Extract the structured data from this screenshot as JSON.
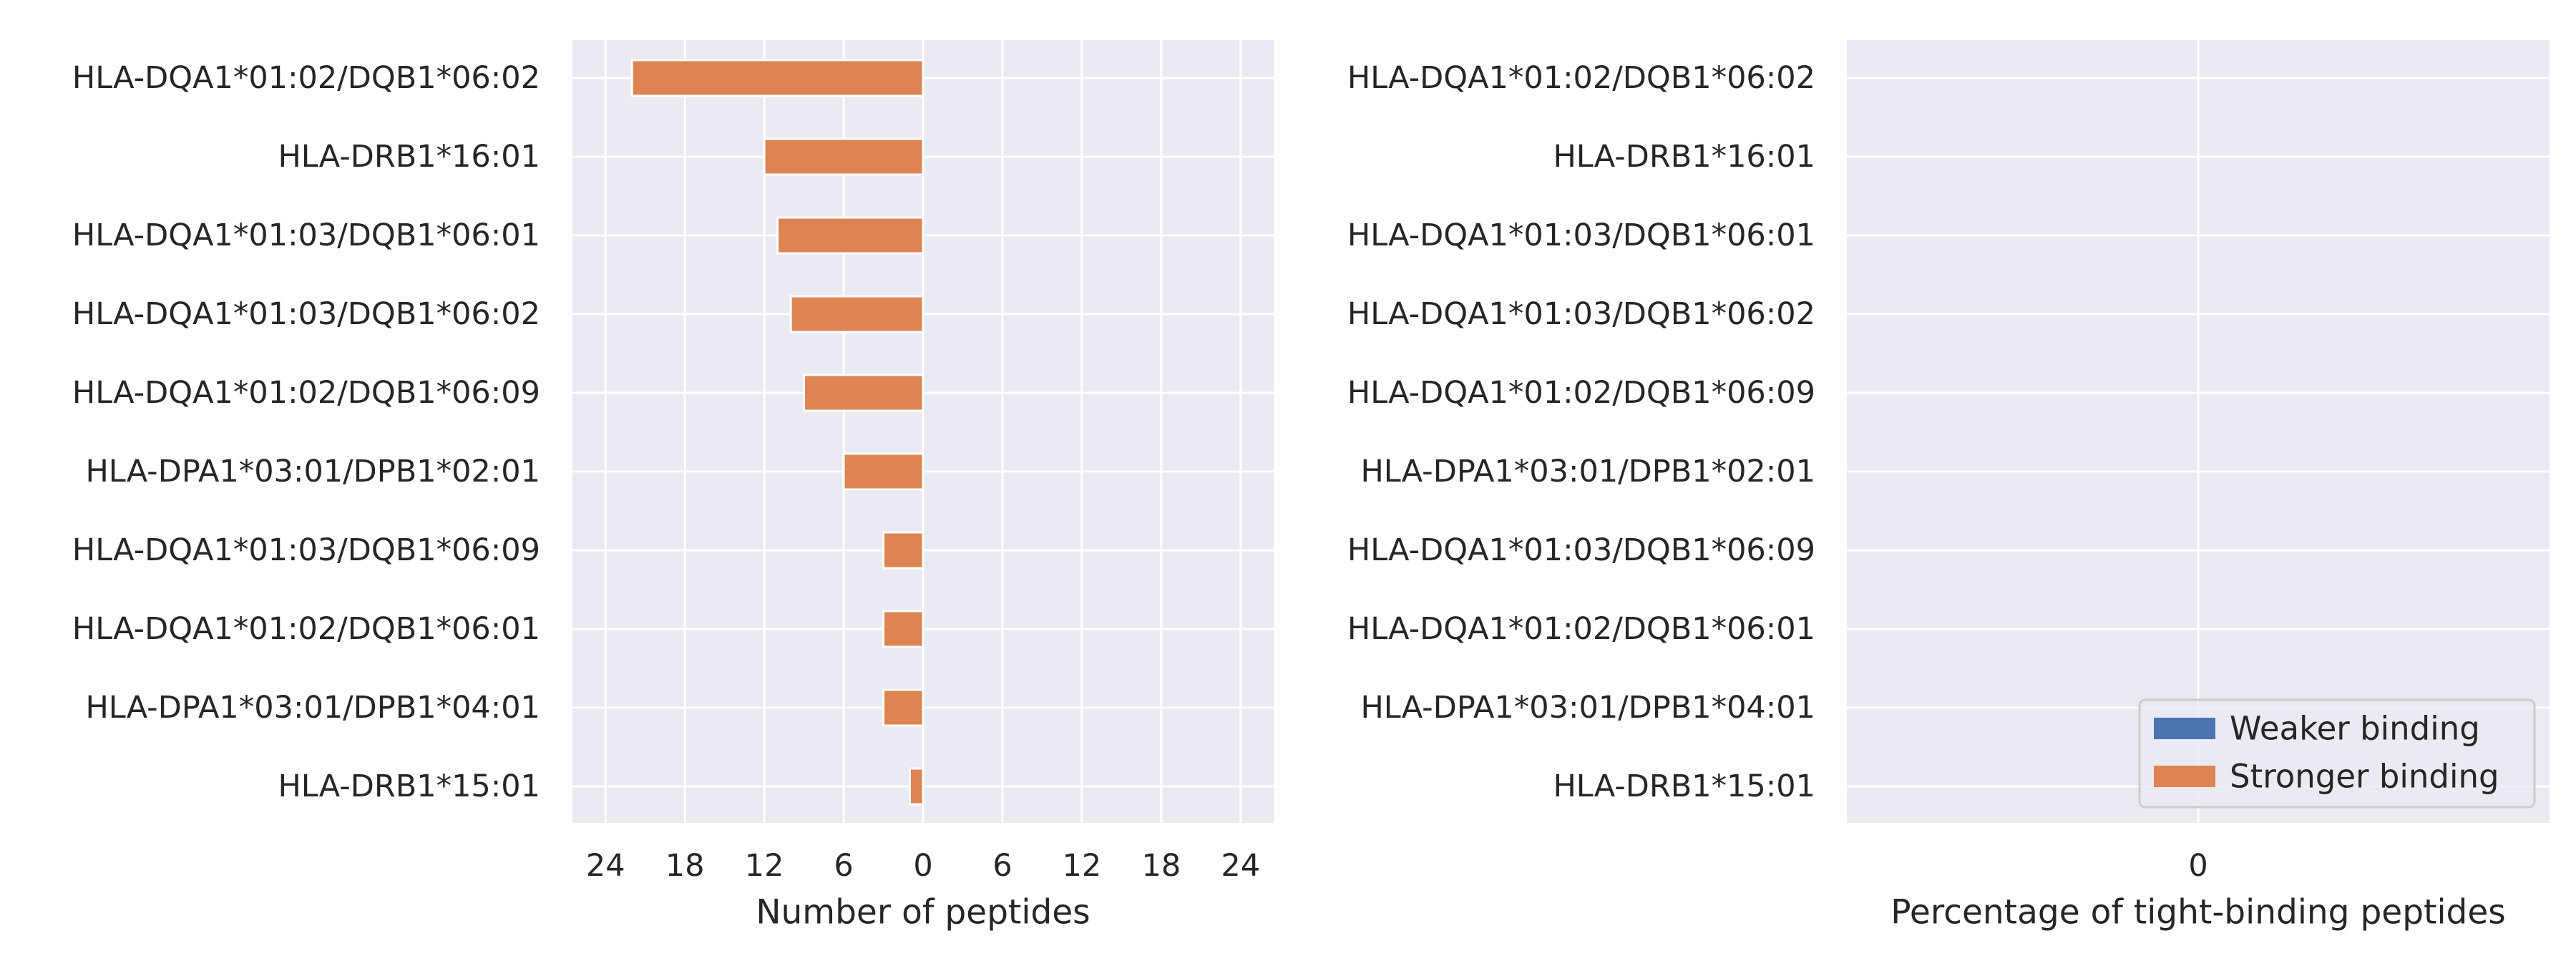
{
  "chart_data": [
    {
      "type": "bar",
      "orientation": "horizontal",
      "categories": [
        "HLA-DQA1*01:02/DQB1*06:02",
        "HLA-DRB1*16:01",
        "HLA-DQA1*01:03/DQB1*06:01",
        "HLA-DQA1*01:03/DQB1*06:02",
        "HLA-DQA1*01:02/DQB1*06:09",
        "HLA-DPA1*03:01/DPB1*02:01",
        "HLA-DQA1*01:03/DQB1*06:09",
        "HLA-DQA1*01:02/DQB1*06:01",
        "HLA-DPA1*03:01/DPB1*04:01",
        "HLA-DRB1*15:01"
      ],
      "series": [
        {
          "name": "Weaker binding",
          "color": "#4c72b0",
          "values": [
            0,
            0,
            0,
            0,
            0,
            0,
            0,
            0,
            0,
            0
          ]
        },
        {
          "name": "Stronger binding",
          "color": "#dd8452",
          "values": [
            -22,
            -12,
            -11,
            -10,
            -9,
            -6,
            -3,
            -3,
            -3,
            -1
          ]
        }
      ],
      "xlabel": "Number of peptides",
      "xlim": [
        -26.5,
        26.5
      ],
      "xticks": [
        -24,
        -18,
        -12,
        -6,
        0,
        6,
        12,
        18,
        24
      ],
      "xtick_labels": [
        "24",
        "18",
        "12",
        "6",
        "0",
        "6",
        "12",
        "18",
        "24"
      ],
      "grid": true
    },
    {
      "type": "bar",
      "orientation": "horizontal",
      "categories": [
        "HLA-DQA1*01:02/DQB1*06:02",
        "HLA-DRB1*16:01",
        "HLA-DQA1*01:03/DQB1*06:01",
        "HLA-DQA1*01:03/DQB1*06:02",
        "HLA-DQA1*01:02/DQB1*06:09",
        "HLA-DPA1*03:01/DPB1*02:01",
        "HLA-DQA1*01:03/DQB1*06:09",
        "HLA-DQA1*01:02/DQB1*06:01",
        "HLA-DPA1*03:01/DPB1*04:01",
        "HLA-DRB1*15:01"
      ],
      "series": [
        {
          "name": "Weaker binding",
          "color": "#4c72b0",
          "values": [
            0,
            0,
            0,
            0,
            0,
            0,
            0,
            0,
            0,
            0
          ]
        },
        {
          "name": "Stronger binding",
          "color": "#dd8452",
          "values": [
            0,
            0,
            0,
            0,
            0,
            0,
            0,
            0,
            0,
            0
          ]
        }
      ],
      "xlabel": "Percentage of tight-binding peptides",
      "xlim": [
        -1,
        1
      ],
      "xticks": [
        0
      ],
      "xtick_labels": [
        "0"
      ],
      "legend": {
        "placement": "lower-right",
        "entries": [
          {
            "label": "Weaker binding",
            "color": "#4c72b0"
          },
          {
            "label": "Stronger binding",
            "color": "#dd8452"
          }
        ]
      },
      "grid": true
    }
  ],
  "style": {
    "plot_background": "#eaeaf2",
    "grid_color": "#ffffff",
    "text_color": "#262626"
  }
}
